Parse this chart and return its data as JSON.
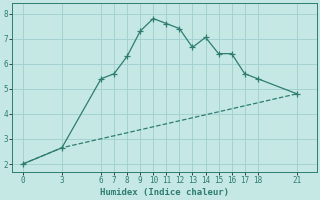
{
  "xlabel": "Humidex (Indice chaleur)",
  "bg_color": "#c5e8e5",
  "grid_color": "#9ecece",
  "line_color": "#2e7d6e",
  "xticks": [
    0,
    3,
    6,
    7,
    8,
    9,
    10,
    11,
    12,
    13,
    14,
    15,
    16,
    17,
    18,
    21
  ],
  "yticks": [
    2,
    3,
    4,
    5,
    6,
    7,
    8
  ],
  "ylim": [
    1.7,
    8.4
  ],
  "xlim": [
    -0.8,
    22.5
  ],
  "line1_x": [
    0,
    3,
    6,
    7,
    8,
    9,
    10,
    11,
    12,
    13,
    14,
    15,
    16,
    17,
    18,
    21
  ],
  "line1_y": [
    2.0,
    2.65,
    5.4,
    5.6,
    6.3,
    7.3,
    7.8,
    7.6,
    7.4,
    6.65,
    7.05,
    6.4,
    6.4,
    5.6,
    5.4,
    4.8
  ],
  "line2_x": [
    0,
    3,
    21
  ],
  "line2_y": [
    2.0,
    2.65,
    4.8
  ],
  "tick_fontsize": 5.5,
  "xlabel_fontsize": 6.5
}
